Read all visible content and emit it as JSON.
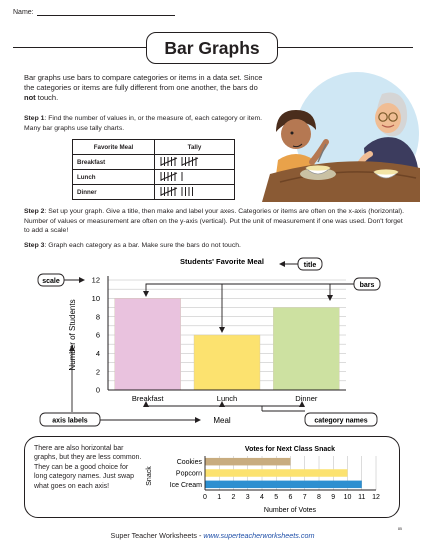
{
  "header": {
    "name_label": "Name:"
  },
  "title": "Bar Graphs",
  "intro": {
    "text_before_bold": "Bar graphs use bars to compare categories or items in a data set. Since the categories or items are fully different from one another, the bars do ",
    "bold_word": "not",
    "text_after_bold": " touch."
  },
  "steps": [
    {
      "label": "Step 1",
      "text": "Find the number of values in, or the measure of, each category or item.  Many bar graphs use tally charts."
    },
    {
      "label": "Step 2",
      "text": "Set up your graph. Give a title, then make and label your axes. Categories or items are often on the x-axis (horizontal). Number of values or measurement are often on the y-axis (vertical). Put the unit of measurement if one was used. Don't forget to add a scale!"
    },
    {
      "label": "Step 3",
      "text": "Graph each category as a bar. Make sure the bars do not touch."
    }
  ],
  "tally_table": {
    "headers": [
      "Favorite Meal",
      "Tally"
    ],
    "rows": [
      {
        "meal": "Breakfast",
        "count": 10
      },
      {
        "meal": "Lunch",
        "count": 6
      },
      {
        "meal": "Dinner",
        "count": 9
      }
    ]
  },
  "callouts": {
    "scale": "scale",
    "title": "title",
    "bars": "bars",
    "axis_labels": "axis labels",
    "category_names": "category names"
  },
  "horizontal_note": "There are also horizontal bar graphs, but they are less common. They can be a good choice for long category names. Just swap what goes on each axis!",
  "chart_data": [
    {
      "type": "bar",
      "title": "Students' Favorite Meal",
      "categories": [
        "Breakfast",
        "Lunch",
        "Dinner"
      ],
      "values": [
        10,
        6,
        9
      ],
      "xlabel": "Meal",
      "ylabel": "Number of Students",
      "ylim": [
        0,
        12
      ],
      "yticks": [
        0,
        2,
        4,
        6,
        8,
        10,
        12
      ],
      "grid": true,
      "colors": [
        "#e9c2de",
        "#fce26f",
        "#cde1a1"
      ]
    },
    {
      "type": "bar",
      "orientation": "horizontal",
      "title": "Votes for Next Class Snack",
      "categories": [
        "Cookies",
        "Popcorn",
        "Ice Cream"
      ],
      "values": [
        6,
        10,
        11
      ],
      "xlabel": "Number of Votes",
      "ylabel": "Snack",
      "xlim": [
        0,
        12
      ],
      "xticks": [
        0,
        1,
        2,
        3,
        4,
        5,
        6,
        7,
        8,
        9,
        10,
        11,
        12
      ],
      "grid": true,
      "colors": [
        "#c8ac7f",
        "#fce26f",
        "#2d8fd0"
      ]
    }
  ],
  "footer": {
    "text": "Super Teacher Worksheets  - ",
    "url": "www.superteacherworksheets.com"
  },
  "page_code": "85"
}
